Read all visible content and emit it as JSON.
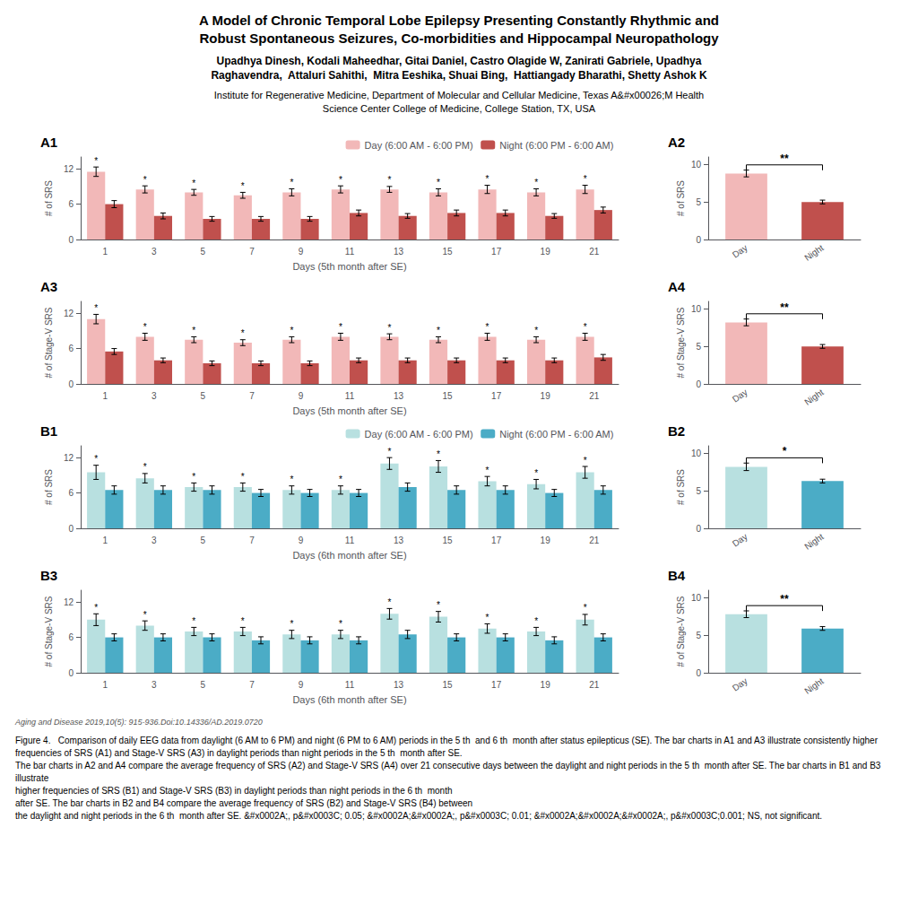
{
  "title": "A Model of Chronic Temporal Lobe Epilepsy Presenting Constantly Rhythmic and\nRobust Spontaneous Seizures, Co-morbidities and Hippocampal Neuropathology",
  "subtitle": "Upadhya Dinesh, Kodali Maheedhar, Gitai Daniel, Castro Olagide W, Zanirati Gabriele, Upadhya\nRaghavendra,  Attaluri Sahithi,  Mitra Eeshika, Shuai Bing,  Hattiangady Bharathi, Shetty Ashok K",
  "annotations": [
    "Institute for Regenerative Medicine, Department of Molecular and Cellular Medicine, Texas A&#x00026;M Health\nScience Center College of Medicine, College Station, TX, USA",
    "Aging and Disease 2019,10(5): 915-936.Doi:10.14336/AD.2019.0720",
    "Figure 4.   Comparison of daily EEG data from daylight (6 AM to 6 PM) and night (6 PM to 6 AM) periods in the 5 th  and 6 th  month after status epilepticus (SE). The bar charts in A1 and A3 illustrate consistently higher\nfrequencies of SRS (A1) and Stage-V SRS (A3) in daylight periods than night periods in the 5 th  month after SE.\nThe bar charts in A2 and A4 compare the average frequency of SRS (A2) and Stage-V SRS (A4) over 21 consecutive days between the daylight and night periods in the 5 th  month after SE. The bar charts in B1 and B3 illustrate\nhigher frequencies of SRS (B1) and Stage-V SRS (B3) in daylight periods than night periods in the 6 th  month\nafter SE. The bar charts in B2 and B4 compare the average frequency of SRS (B2) and Stage-V SRS (B4) between\nthe daylight and night periods in the 6 th  month after SE. &#x0002A;, p&#x0003C; 0.05; &#x0002A;&#x0002A;, p&#x0003C; 0.01; &#x0002A;&#x0002A;&#x0002A;, p&#x0003C;0.001; NS, not significant."
  ],
  "chart_data": [
    {
      "type": "bar",
      "title": "A1",
      "xlabel": "Days (5th month after SE)",
      "ylabel": "# of SRS",
      "categories": [
        "1",
        "3",
        "5",
        "7",
        "9",
        "11",
        "13",
        "15",
        "17",
        "19",
        "21"
      ],
      "series": [
        {
          "name": "Day (6:00 AM - 6:00 PM)",
          "color": "#F2B8B8",
          "values": [
            11.5,
            8.5,
            8.0,
            7.5,
            8.0,
            8.5,
            8.5,
            8.0,
            8.5,
            8.0,
            8.5
          ],
          "errors": [
            0.8,
            0.6,
            0.5,
            0.5,
            0.6,
            0.6,
            0.5,
            0.6,
            0.7,
            0.6,
            0.7
          ],
          "annotations": [
            "*",
            "*",
            "*",
            "*",
            "*",
            "*",
            "*",
            "*",
            "*",
            "*",
            "*"
          ]
        },
        {
          "name": "Night (6:00 PM - 6:00 AM)",
          "color": "#C0504D",
          "values": [
            6.0,
            4.0,
            3.5,
            3.5,
            3.5,
            4.5,
            4.0,
            4.5,
            4.5,
            4.0,
            5.0
          ],
          "errors": [
            0.6,
            0.5,
            0.4,
            0.4,
            0.4,
            0.5,
            0.4,
            0.5,
            0.5,
            0.4,
            0.5
          ]
        }
      ],
      "ylim": [
        0,
        14
      ],
      "yticks": [
        0,
        6,
        12
      ],
      "grid": false,
      "legend": "upper right"
    },
    {
      "type": "bar",
      "title": "A2",
      "ylabel": "# of SRS",
      "categories": [
        "Day",
        "Night"
      ],
      "values": [
        8.8,
        5.0
      ],
      "errors": [
        0.45,
        0.25
      ],
      "colors": [
        "#F2B8B8",
        "#C0504D"
      ],
      "ylim": [
        0,
        11
      ],
      "yticks": [
        0,
        5,
        10
      ],
      "grid": false,
      "annotations": [
        {
          "text": "**",
          "categories": [
            "Day",
            "Night"
          ]
        }
      ]
    },
    {
      "type": "bar",
      "title": "A3",
      "xlabel": "Days (5th month after SE)",
      "ylabel": "# of Stage-V SRS",
      "categories": [
        "1",
        "3",
        "5",
        "7",
        "9",
        "11",
        "13",
        "15",
        "17",
        "19",
        "21"
      ],
      "series": [
        {
          "name": "Day (6:00 AM - 6:00 PM)",
          "color": "#F2B8B8",
          "values": [
            11.0,
            8.0,
            7.5,
            7.0,
            7.5,
            8.0,
            8.0,
            7.5,
            8.0,
            7.5,
            8.0
          ],
          "errors": [
            0.8,
            0.6,
            0.5,
            0.5,
            0.5,
            0.6,
            0.5,
            0.5,
            0.6,
            0.5,
            0.6
          ],
          "annotations": [
            "*",
            "*",
            "*",
            "*",
            "*",
            "*",
            "*",
            "*",
            "*",
            "*",
            "*"
          ]
        },
        {
          "name": "Night (6:00 PM - 6:00 AM)",
          "color": "#C0504D",
          "values": [
            5.5,
            4.0,
            3.5,
            3.5,
            3.5,
            4.0,
            4.0,
            4.0,
            4.0,
            4.0,
            4.5
          ],
          "errors": [
            0.5,
            0.4,
            0.4,
            0.4,
            0.4,
            0.4,
            0.4,
            0.4,
            0.4,
            0.4,
            0.5
          ]
        }
      ],
      "ylim": [
        0,
        14
      ],
      "yticks": [
        0,
        6,
        12
      ],
      "grid": false
    },
    {
      "type": "bar",
      "title": "A4",
      "ylabel": "# of Stage-V SRS",
      "categories": [
        "Day",
        "Night"
      ],
      "values": [
        8.2,
        5.0
      ],
      "errors": [
        0.45,
        0.25
      ],
      "colors": [
        "#F2B8B8",
        "#C0504D"
      ],
      "ylim": [
        0,
        11
      ],
      "yticks": [
        0,
        5,
        10
      ],
      "grid": false,
      "annotations": [
        {
          "text": "**",
          "categories": [
            "Day",
            "Night"
          ]
        }
      ]
    },
    {
      "type": "bar",
      "title": "B1",
      "xlabel": "Days (6th month after SE)",
      "ylabel": "# of SRS",
      "categories": [
        "1",
        "3",
        "5",
        "7",
        "9",
        "11",
        "13",
        "15",
        "17",
        "19",
        "21"
      ],
      "series": [
        {
          "name": "Day (6:00 AM - 6:00 PM)",
          "color": "#B8E0E0",
          "values": [
            9.5,
            8.5,
            7.0,
            7.0,
            6.5,
            6.5,
            11.0,
            10.5,
            8.0,
            7.5,
            9.5
          ],
          "errors": [
            1.2,
            0.8,
            0.7,
            0.7,
            0.7,
            0.7,
            1.0,
            1.0,
            0.8,
            0.8,
            1.0
          ],
          "annotations": [
            "*",
            "*",
            "*",
            "*",
            "*",
            "*",
            "*",
            "*",
            "*",
            "*",
            "*"
          ]
        },
        {
          "name": "Night (6:00 PM - 6:00 AM)",
          "color": "#4BACC6",
          "values": [
            6.5,
            6.5,
            6.5,
            6.0,
            6.0,
            6.0,
            7.0,
            6.5,
            6.5,
            6.0,
            6.5
          ],
          "errors": [
            0.7,
            0.7,
            0.7,
            0.6,
            0.6,
            0.6,
            0.7,
            0.7,
            0.7,
            0.6,
            0.7
          ]
        }
      ],
      "ylim": [
        0,
        14
      ],
      "yticks": [
        0,
        6,
        12
      ],
      "grid": false,
      "legend": "upper right"
    },
    {
      "type": "bar",
      "title": "B2",
      "ylabel": "# of SRS",
      "categories": [
        "Day",
        "Night"
      ],
      "values": [
        8.2,
        6.3
      ],
      "errors": [
        0.5,
        0.25
      ],
      "colors": [
        "#B8E0E0",
        "#4BACC6"
      ],
      "ylim": [
        0,
        11
      ],
      "yticks": [
        0,
        5,
        10
      ],
      "grid": false,
      "annotations": [
        {
          "text": "*",
          "categories": [
            "Day",
            "Night"
          ]
        }
      ]
    },
    {
      "type": "bar",
      "title": "B3",
      "xlabel": "Days (6th month after SE)",
      "ylabel": "# of Stage-V SRS",
      "categories": [
        "1",
        "3",
        "5",
        "7",
        "9",
        "11",
        "13",
        "15",
        "17",
        "19",
        "21"
      ],
      "series": [
        {
          "name": "Day (6:00 AM - 6:00 PM)",
          "color": "#B8E0E0",
          "values": [
            9.0,
            8.0,
            7.0,
            7.0,
            6.5,
            6.5,
            10.0,
            9.5,
            7.5,
            7.0,
            9.0
          ],
          "errors": [
            1.0,
            0.8,
            0.7,
            0.7,
            0.7,
            0.7,
            0.9,
            0.9,
            0.8,
            0.7,
            0.9
          ],
          "annotations": [
            "*",
            "*",
            "*",
            "*",
            "*",
            "*",
            "*",
            "*",
            "*",
            "*",
            "*"
          ]
        },
        {
          "name": "Night (6:00 PM - 6:00 AM)",
          "color": "#4BACC6",
          "values": [
            6.0,
            6.0,
            6.0,
            5.5,
            5.5,
            5.5,
            6.5,
            6.0,
            6.0,
            5.5,
            6.0
          ],
          "errors": [
            0.6,
            0.6,
            0.6,
            0.6,
            0.6,
            0.6,
            0.7,
            0.6,
            0.6,
            0.6,
            0.6
          ]
        }
      ],
      "ylim": [
        0,
        14
      ],
      "yticks": [
        0,
        6,
        12
      ],
      "grid": false
    },
    {
      "type": "bar",
      "title": "B4",
      "ylabel": "# of Stage-V SRS",
      "categories": [
        "Day",
        "Night"
      ],
      "values": [
        7.8,
        5.9
      ],
      "errors": [
        0.45,
        0.25
      ],
      "colors": [
        "#B8E0E0",
        "#4BACC6"
      ],
      "ylim": [
        0,
        11
      ],
      "yticks": [
        0,
        5,
        10
      ],
      "grid": false,
      "annotations": [
        {
          "text": "**",
          "categories": [
            "Day",
            "Night"
          ]
        }
      ]
    }
  ]
}
